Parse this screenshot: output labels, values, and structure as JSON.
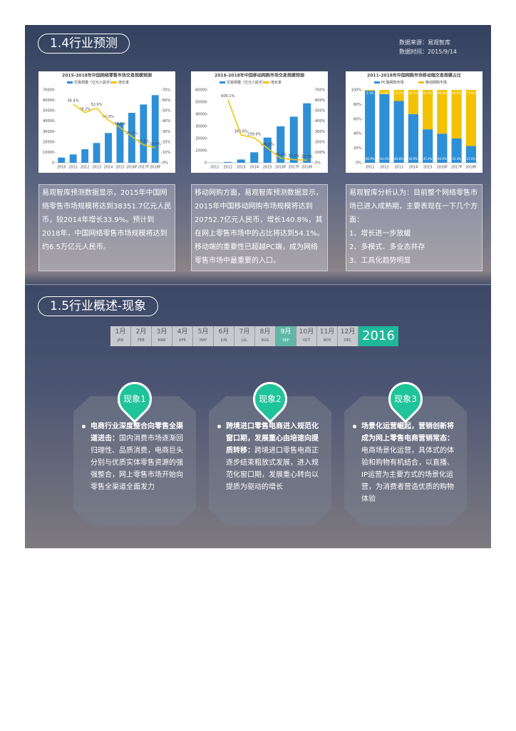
{
  "section1": {
    "title": "1.4行业预测",
    "source": "数据来源：易观智库",
    "date": "数据时间：2015/9/14",
    "texts": [
      {
        "body": "易观智库预测数据显示，2015年中国网络零售市场规模将达到38351.7亿元人民币，较2014年增长33.9%。预计到2018年，中国网络零售市场规模将达到约6.5万亿元人民币。"
      },
      {
        "body": "移动网购方面，易观智库预测数据显示，2015年中国移动网购市场规模将达到20752.7亿元人民币，增长140.8%，其在网上零售市场中的占比将达到54.1%。移动端的重要性已超越PC端，成为网络零售市场中最重要的入口。"
      },
      {
        "body": "易观智库分析认为：目前整个网络零售市场已进入成熟期，主要表现在一下几个方面：",
        "items": [
          "1、增长进一步放缓",
          "2、多模式、多业态并存",
          "3、工具化趋势明显"
        ]
      }
    ]
  },
  "chart_data": [
    {
      "type": "bar",
      "title": "2015-2018年中国网络零售市场交易规模预测",
      "categories": [
        "2010",
        "2011",
        "2012",
        "2013",
        "2014",
        "2015",
        "2016F",
        "2017F",
        "2018F"
      ],
      "series": [
        {
          "name": "交易规模（亿元人民币）",
          "color": "#2e8fd6",
          "values": [
            5000,
            8000,
            13000,
            19000,
            28600,
            38351.7,
            48000,
            56000,
            65000
          ]
        },
        {
          "name": "增长率",
          "type": "line",
          "axis": "y2",
          "color": "#f2c200",
          "values": [
            null,
            56.4,
            48.2,
            52.6,
            41.0,
            33.9,
            25.2,
            17.3,
            14.6
          ],
          "value_labels": [
            null,
            "56.4%",
            "48.2%",
            "52.6%",
            "41.0%",
            "33.9%",
            "25.2%",
            "17.3%",
            "14.6%"
          ]
        }
      ],
      "ylim": [
        0,
        70000
      ],
      "yticks": [
        0,
        10000,
        20000,
        30000,
        40000,
        50000,
        60000,
        70000
      ],
      "y2lim": [
        0,
        70
      ],
      "y2ticks": [
        {
          "value": 0,
          "label": "0%"
        },
        {
          "value": 10,
          "label": "10%"
        },
        {
          "value": 20,
          "label": "20%"
        },
        {
          "value": 30,
          "label": "30%"
        },
        {
          "value": 40,
          "label": "40%"
        },
        {
          "value": 50,
          "label": "50%"
        },
        {
          "value": 60,
          "label": "60%"
        },
        {
          "value": 70,
          "label": "70%"
        }
      ]
    },
    {
      "type": "bar",
      "title": "2016-2018年中国移动网购市场交易规模预测",
      "categories": [
        "2011",
        "2012",
        "2013",
        "2014",
        "2015",
        "2016F",
        "2017F",
        "2018F"
      ],
      "series": [
        {
          "name": "交易规模（亿元人民币）",
          "color": "#2e8fd6",
          "values": [
            118,
            659,
            2679,
            8617,
            20752.7,
            30000,
            38000,
            49000
          ]
        },
        {
          "name": "增长率",
          "type": "line",
          "axis": "y2",
          "color": "#f2c200",
          "values": [
            null,
            606.1,
            266.6,
            239.9,
            140.8,
            45.2,
            30.1,
            25.3
          ],
          "value_labels": [
            null,
            "606.1%",
            "266.6%",
            "239.9%",
            "140.8%",
            "45.2%",
            "30.1%",
            "25.3%"
          ]
        }
      ],
      "ylim": [
        0,
        60000
      ],
      "yticks": [
        0,
        10000,
        20000,
        30000,
        40000,
        50000,
        60000
      ],
      "y2lim": [
        0,
        700
      ],
      "y2ticks": [
        {
          "value": 0,
          "label": "0%"
        },
        {
          "value": 100,
          "label": "100%"
        },
        {
          "value": 200,
          "label": "200%"
        },
        {
          "value": 300,
          "label": "300%"
        },
        {
          "value": 400,
          "label": "400%"
        },
        {
          "value": 500,
          "label": "500%"
        },
        {
          "value": 600,
          "label": "600%"
        },
        {
          "value": 700,
          "label": "700%"
        }
      ]
    },
    {
      "type": "stacked_bar",
      "title": "2011-2018年中国网购市场移动端交易规模占比",
      "categories": [
        "2011",
        "2012",
        "2013",
        "2014",
        "2015",
        "2016F",
        "2017F",
        "2018F"
      ],
      "series": [
        {
          "name": "PC端网购市场",
          "color": "#2e8fd6",
          "values": [
            98.9,
            94.4,
            84.8,
            66.9,
            45.9,
            40.0,
            33.4,
            23.0
          ],
          "value_labels": [
            "98.9%",
            "94.4%",
            "84.8%",
            "66.9%",
            "45.9%",
            "40.0%",
            "33.4%",
            "23.0%"
          ]
        },
        {
          "name": "移动网购市场",
          "color": "#f2c200",
          "values": [
            1.1,
            5.6,
            15.2,
            33.1,
            54.1,
            60.0,
            66.6,
            77.0
          ],
          "value_labels": [
            "1.1%",
            "5.6%",
            "15.2%",
            "33.1%",
            "54.1%",
            "60.0%",
            "66.6%",
            "77.0%"
          ]
        }
      ],
      "ylim": [
        0,
        100
      ],
      "yticks": [
        {
          "value": 0,
          "label": "0%"
        },
        {
          "value": 20,
          "label": "20%"
        },
        {
          "value": 40,
          "label": "40%"
        },
        {
          "value": 60,
          "label": "60%"
        },
        {
          "value": 80,
          "label": "80%"
        },
        {
          "value": 100,
          "label": "100%"
        }
      ]
    }
  ],
  "section2": {
    "title": "1.5行业概述-现象",
    "timeline": {
      "months": [
        {
          "zh": "1月",
          "en": "JAN"
        },
        {
          "zh": "2月",
          "en": "FEB"
        },
        {
          "zh": "3月",
          "en": "MAR"
        },
        {
          "zh": "4月",
          "en": "APR"
        },
        {
          "zh": "5月",
          "en": "MAY"
        },
        {
          "zh": "6月",
          "en": "JUN"
        },
        {
          "zh": "7月",
          "en": "JUL"
        },
        {
          "zh": "8月",
          "en": "AUG"
        },
        {
          "zh": "9月",
          "en": "SEP"
        },
        {
          "zh": "10月",
          "en": "OCT"
        },
        {
          "zh": "11月",
          "en": "NOV"
        },
        {
          "zh": "12月",
          "en": "DEC"
        }
      ],
      "highlight": 8,
      "year": "2016"
    },
    "cards": [
      {
        "label": "现象1",
        "head": "电商行业深度整合向零售全渠道进击：",
        "body": "国内消费市场逐渐回归理性、品质消费，电商巨头分别与优质实体零售资源的强强整合，网上零售市场开始向零售全渠道全面发力"
      },
      {
        "label": "现象2",
        "head": "跨境进口零售电商进入规范化窗口期，发展重心由培速向提质转移：",
        "body": "跨境进口零售电商正逐步结束粗放式发展，进入规范化窗口期，发展重心转向以提质为驱动的增长"
      },
      {
        "label": "现象3",
        "head": "场景化运营崛起，营销创新将成为网上零售电商营销常态：",
        "body": "电商场景化运营，具体式的体验和购物有机结合，以直播、IP运营为主要方式的场景化运营，为消费者营造优质的购物体验"
      }
    ]
  }
}
